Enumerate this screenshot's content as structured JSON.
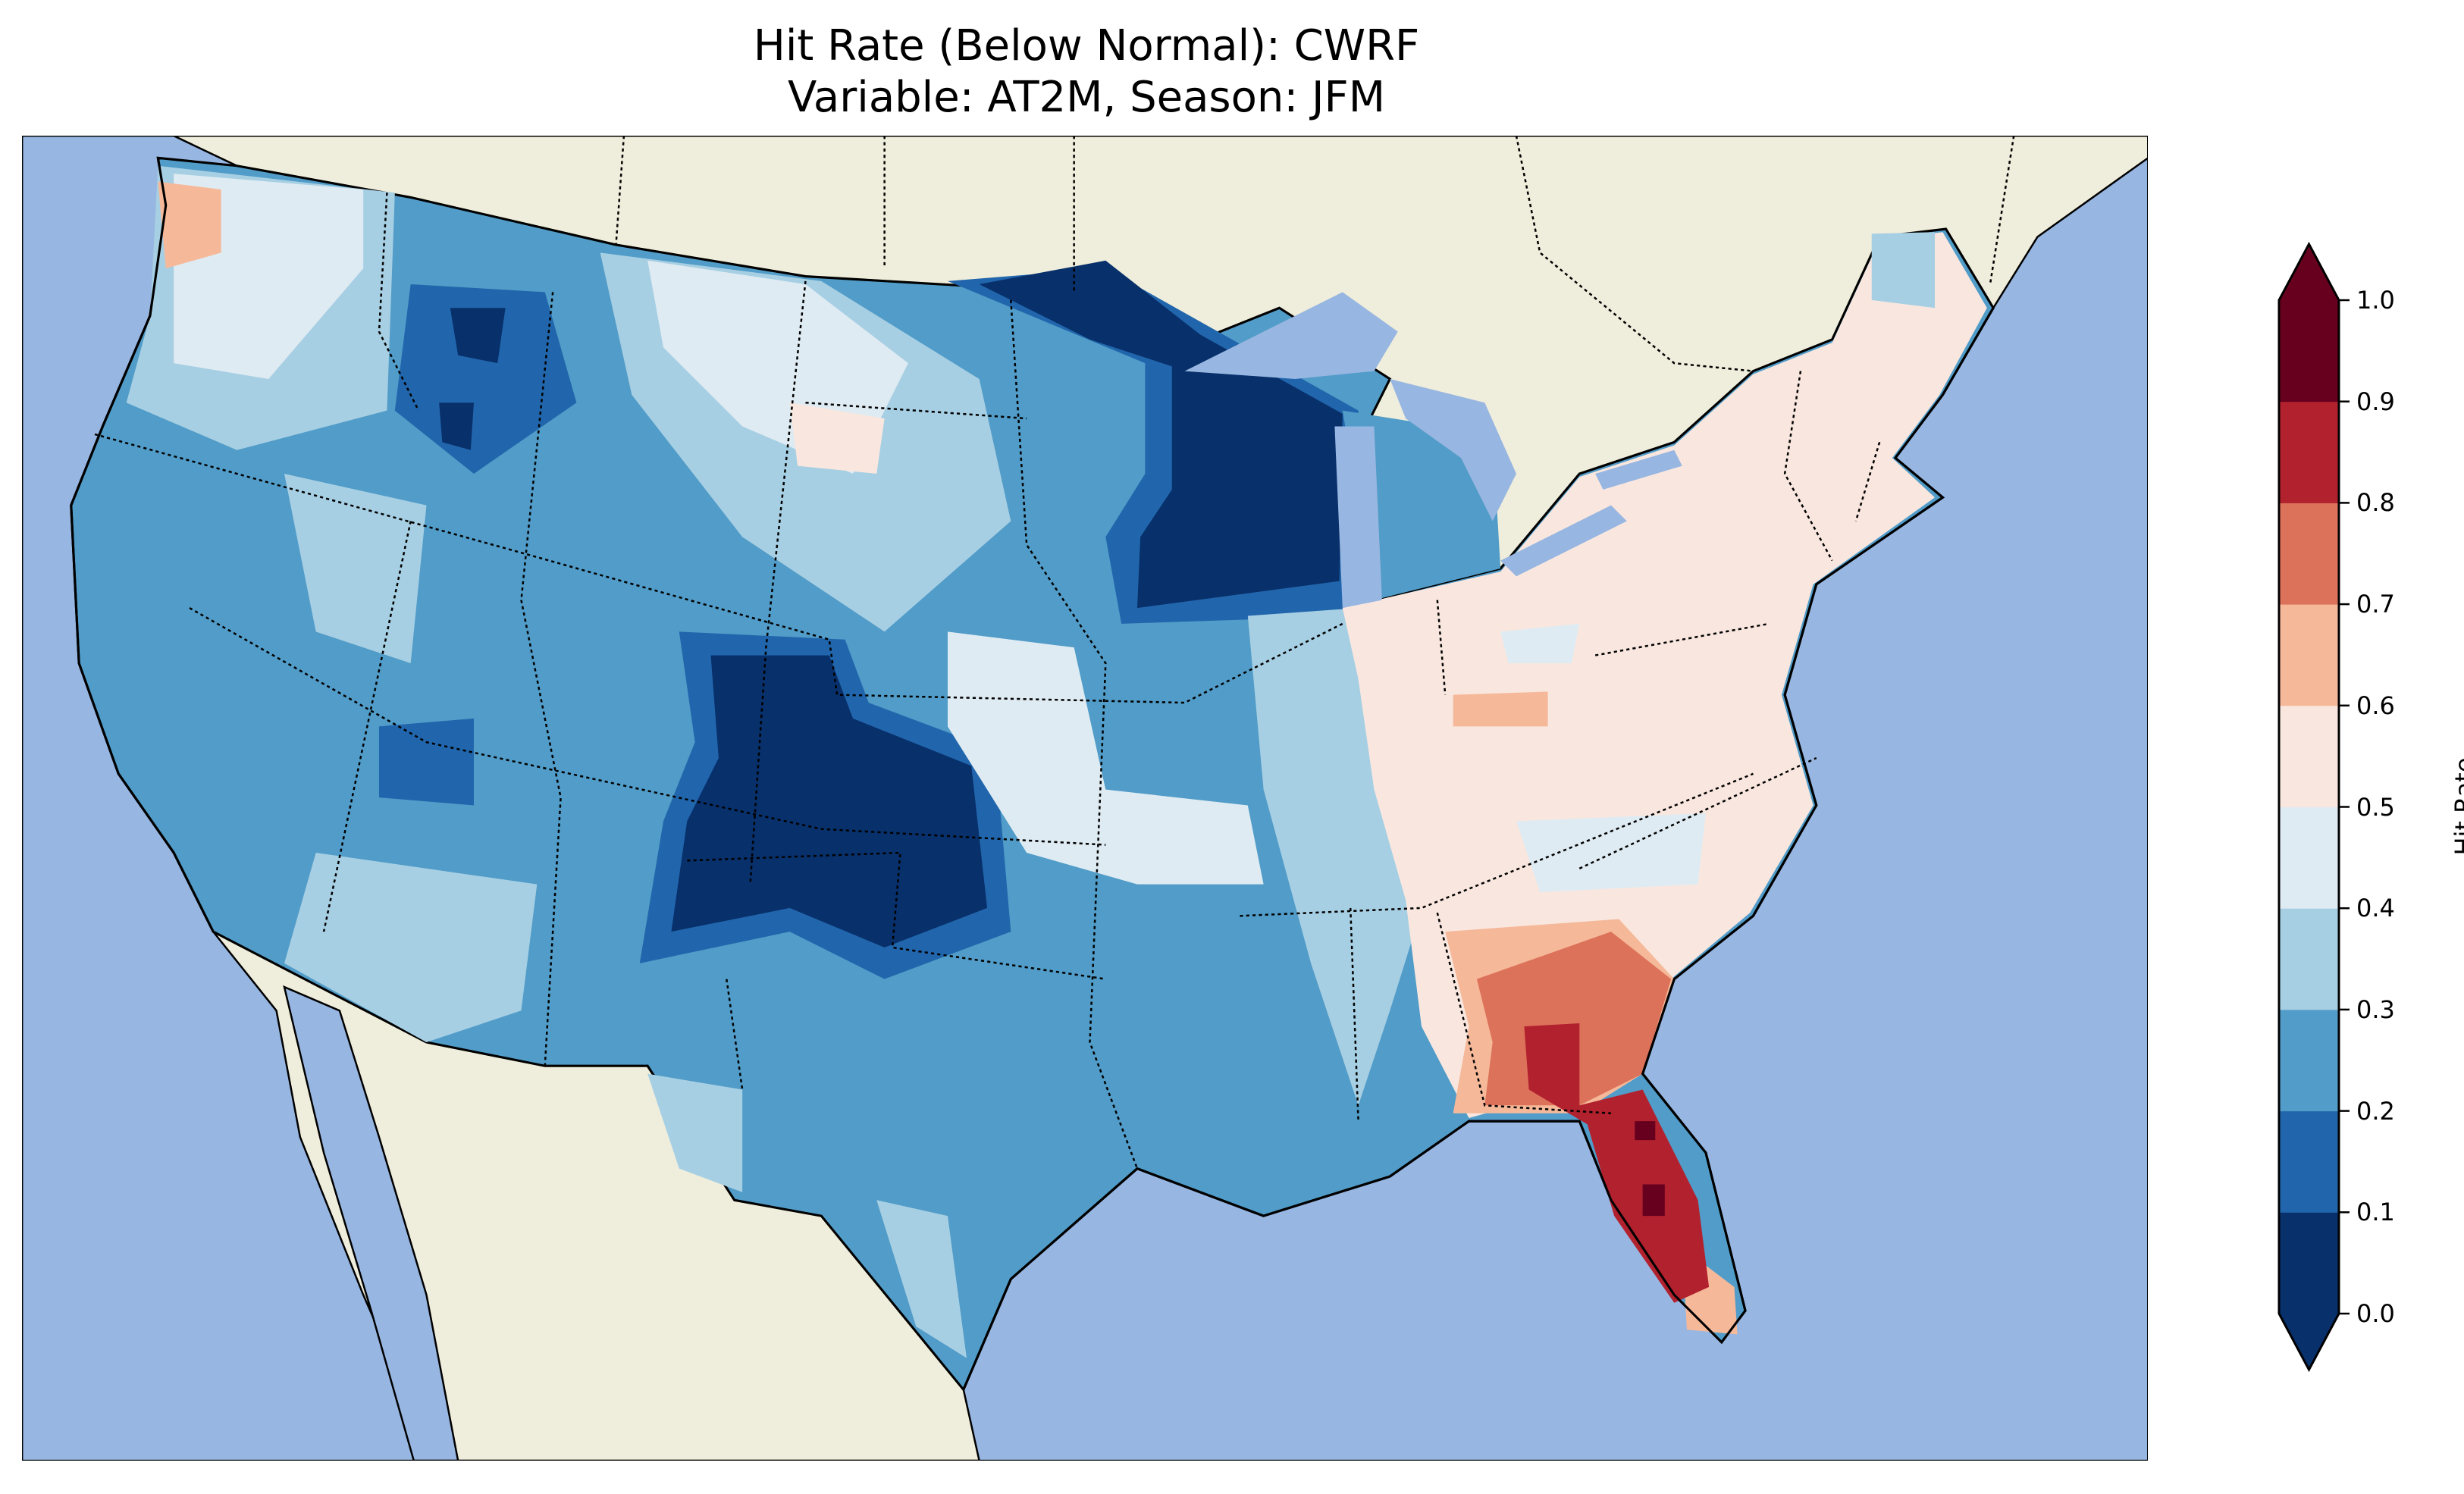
{
  "chart_data": {
    "type": "heatmap",
    "title": "Hit Rate (Below Normal): CWRF",
    "subtitle": "Variable: AT2M, Season: JFM",
    "map_region": "Continental United States",
    "colorbar": {
      "label": "Hit Rate",
      "range": [
        0.0,
        1.0
      ],
      "extend": "both",
      "ticks": [
        "0.0",
        "0.1",
        "0.2",
        "0.3",
        "0.4",
        "0.5",
        "0.6",
        "0.7",
        "0.8",
        "0.9",
        "1.0"
      ],
      "levels": [
        {
          "min": 0.0,
          "max": 0.1,
          "color": "#08306b"
        },
        {
          "min": 0.1,
          "max": 0.2,
          "color": "#2166ac"
        },
        {
          "min": 0.2,
          "max": 0.3,
          "color": "#519cc8"
        },
        {
          "min": 0.3,
          "max": 0.4,
          "color": "#a7cfe3"
        },
        {
          "min": 0.4,
          "max": 0.5,
          "color": "#dfebf2"
        },
        {
          "min": 0.5,
          "max": 0.6,
          "color": "#f9e7df"
        },
        {
          "min": 0.6,
          "max": 0.7,
          "color": "#f5b99a"
        },
        {
          "min": 0.7,
          "max": 0.8,
          "color": "#dd725a"
        },
        {
          "min": 0.8,
          "max": 0.9,
          "color": "#b2212e"
        },
        {
          "min": 0.9,
          "max": 1.0,
          "color": "#67001f"
        }
      ]
    },
    "regional_summary": {
      "Colorado/New Mexico": "0.0-0.1",
      "Minnesota/Wisconsin": "0.0-0.1",
      "Western US": "0.2-0.3",
      "Northeast/Ohio Valley": "0.5-0.6",
      "Georgia/South Carolina": "0.7-0.8",
      "Florida": "0.8-1.0"
    }
  },
  "colors": {
    "ocean": "#97b6e1",
    "land": "#efeddb"
  }
}
